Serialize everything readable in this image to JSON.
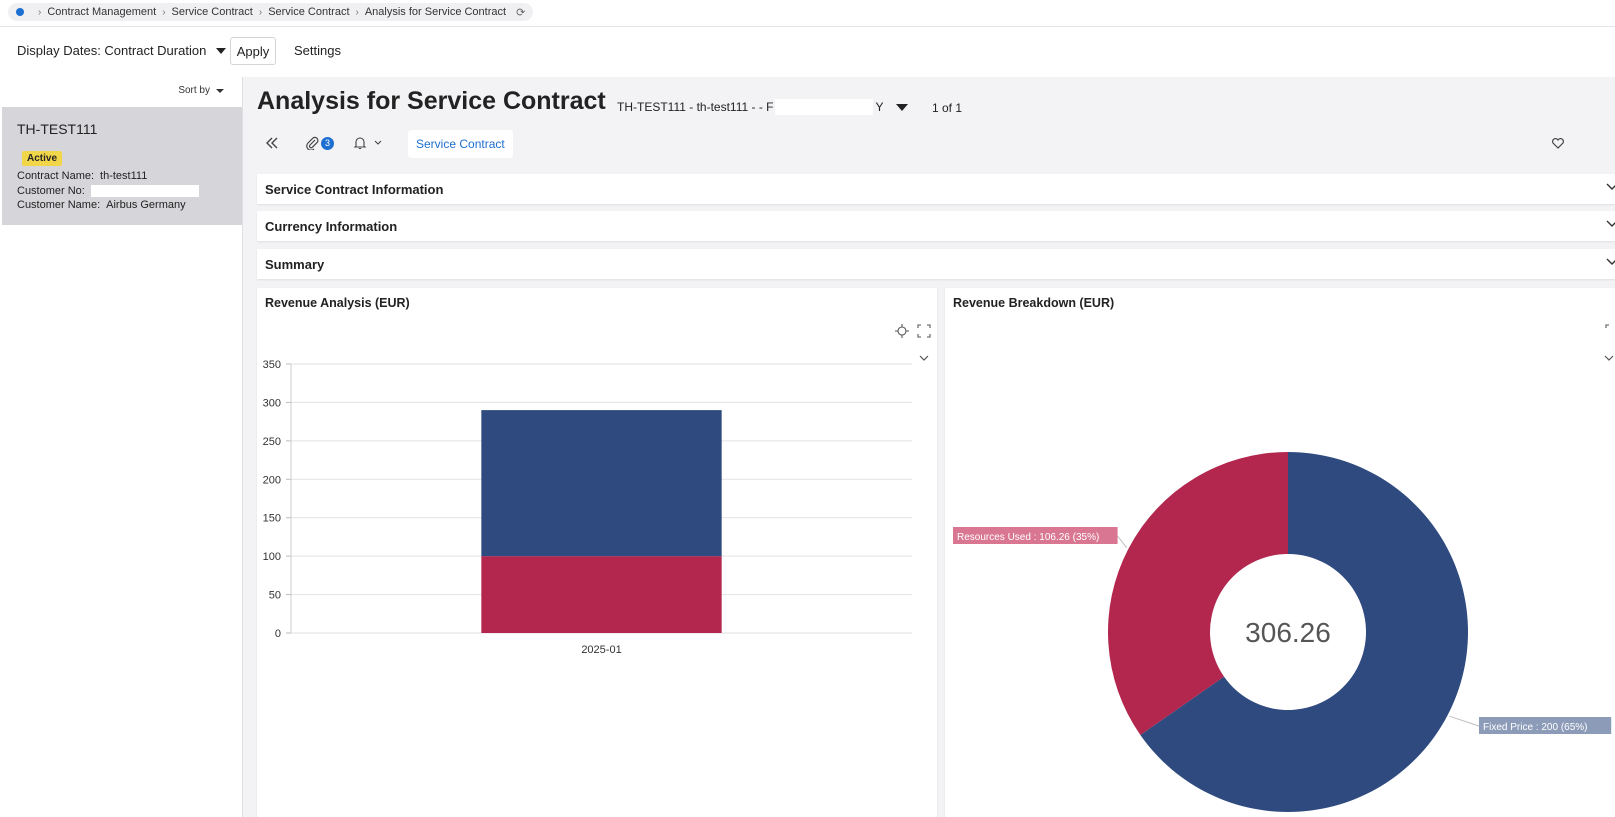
{
  "breadcrumb": {
    "items": [
      "Contract Management",
      "Service Contract",
      "Service Contract",
      "Analysis for Service Contract"
    ]
  },
  "toolbar": {
    "display_dates": "Display Dates: Contract Duration",
    "apply": "Apply",
    "settings": "Settings"
  },
  "sidebar": {
    "sort_by": "Sort by",
    "record": {
      "id": "TH-TEST111",
      "status": "Active",
      "contract_name_label": "Contract Name:",
      "contract_name": "th-test111",
      "customer_no_label": "Customer No:",
      "customer_name_label": "Customer Name:",
      "customer_name": "Airbus Germany"
    }
  },
  "header": {
    "title": "Analysis for Service Contract",
    "record_prefix": "TH-TEST111 - th-test111 - - F",
    "record_suffix": "Y",
    "page_count": "1 of 1"
  },
  "actions": {
    "attachments_count": "3",
    "service_contract": "Service Contract"
  },
  "sections": [
    "Service Contract Information",
    "Currency Information",
    "Summary"
  ],
  "colors": {
    "fixed_price": "#2f4a7e",
    "resources_used": "#b3264d",
    "accent": "#1d6fd1",
    "status_active": "#f2d64a"
  },
  "chart_data": [
    {
      "type": "bar",
      "title": "Revenue Analysis (EUR)",
      "stacked": true,
      "categories": [
        "2025-01"
      ],
      "series": [
        {
          "values": [
            100
          ]
        },
        {
          "values": [
            190
          ]
        }
      ],
      "ylim": [
        0,
        350
      ],
      "yticks": [
        0,
        50,
        100,
        150,
        200,
        250,
        300,
        350
      ],
      "grid": true
    },
    {
      "type": "pie",
      "donut": true,
      "title": "Revenue Breakdown (EUR)",
      "center_label": "306.26",
      "slices": [
        {
          "label": "Fixed Price : 200 (65%)",
          "value": 200
        },
        {
          "label": "Resources Used : 106.26 (35%)",
          "value": 106.26
        }
      ]
    }
  ]
}
